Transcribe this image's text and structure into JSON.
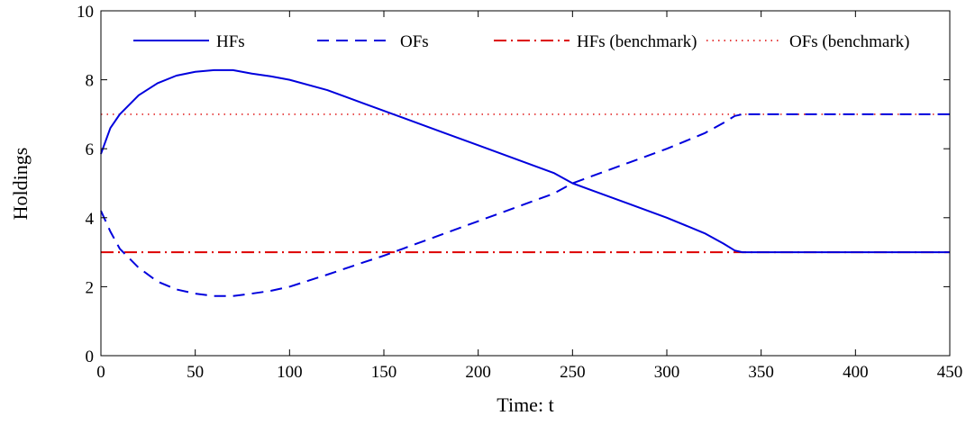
{
  "chart_data": {
    "type": "line",
    "title": "",
    "xlabel": "Time: t",
    "ylabel": "Holdings",
    "xlim": [
      0,
      450
    ],
    "ylim": [
      0,
      10
    ],
    "xticks": [
      0,
      50,
      100,
      150,
      200,
      250,
      300,
      350,
      400,
      450
    ],
    "yticks": [
      0,
      2,
      4,
      6,
      8,
      10
    ],
    "grid": false,
    "legend_placement": "top",
    "series": [
      {
        "name": "HFs",
        "color": "#0000dd",
        "style": "solid",
        "x": [
          0,
          5,
          10,
          20,
          30,
          40,
          50,
          60,
          70,
          80,
          90,
          100,
          120,
          140,
          150,
          160,
          180,
          200,
          220,
          240,
          250,
          260,
          280,
          300,
          320,
          330,
          336,
          340,
          350,
          400,
          450
        ],
        "y": [
          5.85,
          6.6,
          7.0,
          7.55,
          7.9,
          8.12,
          8.23,
          8.28,
          8.28,
          8.18,
          8.1,
          8.0,
          7.7,
          7.3,
          7.1,
          6.9,
          6.5,
          6.1,
          5.7,
          5.3,
          5.0,
          4.8,
          4.4,
          4.0,
          3.55,
          3.25,
          3.05,
          3.0,
          3.0,
          3.0,
          3.0
        ]
      },
      {
        "name": "OFs",
        "color": "#0000dd",
        "style": "dashed",
        "x": [
          0,
          5,
          10,
          20,
          30,
          40,
          50,
          60,
          70,
          80,
          90,
          100,
          120,
          140,
          150,
          160,
          180,
          200,
          220,
          240,
          250,
          260,
          280,
          300,
          320,
          330,
          336,
          340,
          350,
          400,
          450
        ],
        "y": [
          4.2,
          3.6,
          3.1,
          2.55,
          2.15,
          1.92,
          1.8,
          1.73,
          1.73,
          1.8,
          1.88,
          2.0,
          2.35,
          2.72,
          2.9,
          3.1,
          3.5,
          3.9,
          4.3,
          4.7,
          5.0,
          5.2,
          5.6,
          6.0,
          6.45,
          6.75,
          6.95,
          7.0,
          7.0,
          7.0,
          7.0
        ]
      },
      {
        "name": "HFs (benchmark)",
        "color": "#dd0000",
        "style": "dashdot",
        "x": [
          0,
          450
        ],
        "y": [
          3,
          3
        ]
      },
      {
        "name": "OFs (benchmark)",
        "color": "#dd0000",
        "style": "dotted",
        "x": [
          0,
          450
        ],
        "y": [
          7,
          7
        ]
      }
    ]
  }
}
